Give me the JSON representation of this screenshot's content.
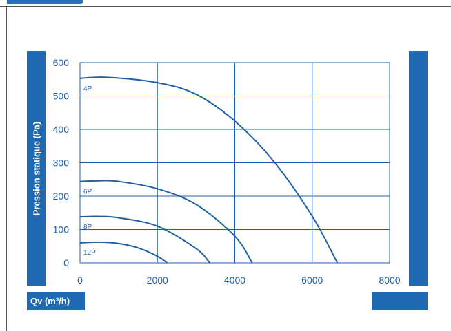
{
  "chart_data": {
    "type": "line",
    "ylabel": "Pression statique (Pa)",
    "xlabel": "Qv (m³/h)",
    "xlim": [
      0,
      8000
    ],
    "ylim": [
      0,
      600
    ],
    "xticks": [
      "0",
      "2000",
      "4000",
      "6000",
      "8000"
    ],
    "yticks": [
      "0",
      "100",
      "200",
      "300",
      "400",
      "500",
      "600"
    ],
    "grid": true,
    "colors": {
      "line": "#1f5fa8",
      "grid": "#1f5fa8",
      "tick": "#1f5fa8",
      "bar": "#1f6ab2"
    },
    "series": [
      {
        "name": "4P",
        "points": [
          [
            0,
            553
          ],
          [
            700,
            556
          ],
          [
            2000,
            540
          ],
          [
            3000,
            505
          ],
          [
            4000,
            425
          ],
          [
            5000,
            305
          ],
          [
            6000,
            140
          ],
          [
            6650,
            0
          ]
        ]
      },
      {
        "name": "6P",
        "points": [
          [
            0,
            244
          ],
          [
            500,
            246
          ],
          [
            1000,
            244
          ],
          [
            2000,
            222
          ],
          [
            3000,
            175
          ],
          [
            4000,
            80
          ],
          [
            4450,
            0
          ]
        ]
      },
      {
        "name": "8P",
        "points": [
          [
            0,
            138
          ],
          [
            500,
            139
          ],
          [
            1000,
            135
          ],
          [
            2000,
            110
          ],
          [
            3000,
            43
          ],
          [
            3350,
            0
          ]
        ]
      },
      {
        "name": "12P",
        "points": [
          [
            0,
            60
          ],
          [
            500,
            62
          ],
          [
            1000,
            58
          ],
          [
            1500,
            45
          ],
          [
            2000,
            20
          ],
          [
            2250,
            0
          ]
        ]
      }
    ]
  }
}
